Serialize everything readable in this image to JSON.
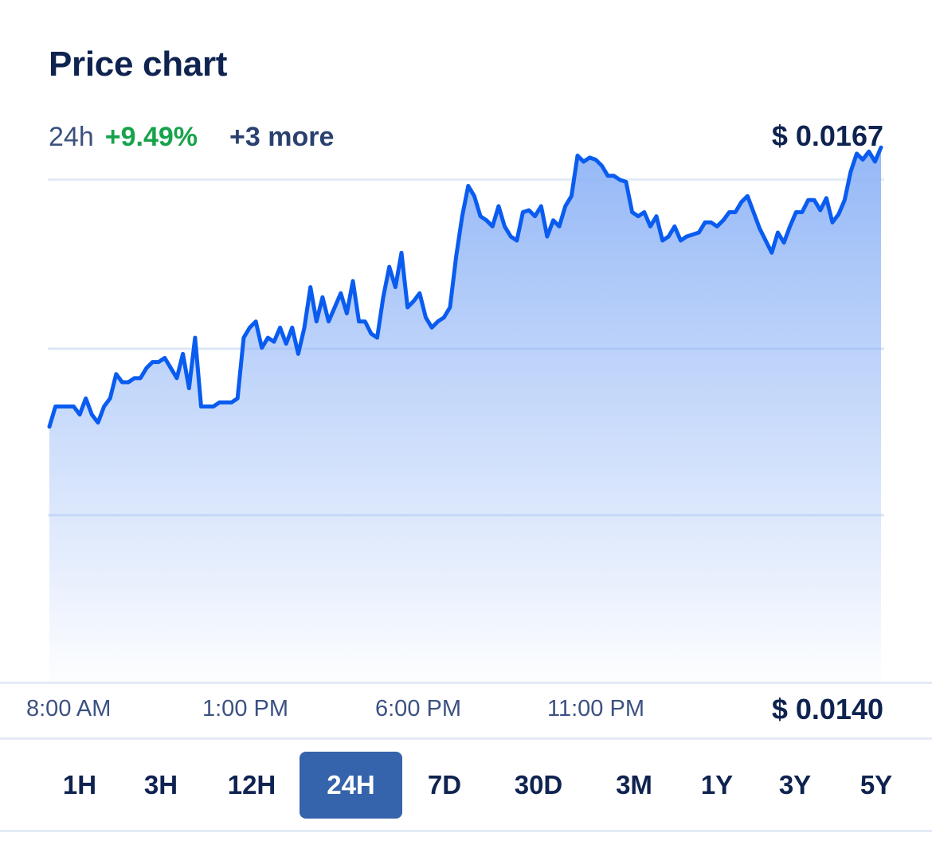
{
  "header": {
    "title": "Price chart",
    "period": "24h",
    "change": "+9.49%",
    "more": "+3 more",
    "price_high": "$ 0.0167",
    "price_low": "$ 0.0140"
  },
  "time_labels": [
    "8:00 AM",
    "1:00 PM",
    "6:00 PM",
    "11:00 PM"
  ],
  "ranges": [
    {
      "label": "1H",
      "active": false
    },
    {
      "label": "3H",
      "active": false
    },
    {
      "label": "12H",
      "active": false
    },
    {
      "label": "24H",
      "active": true
    },
    {
      "label": "7D",
      "active": false
    },
    {
      "label": "30D",
      "active": false
    },
    {
      "label": "3M",
      "active": false
    },
    {
      "label": "1Y",
      "active": false
    },
    {
      "label": "3Y",
      "active": false
    },
    {
      "label": "5Y",
      "active": false
    }
  ],
  "colors": {
    "line": "#0a5cf0",
    "fill_top": "#8fb4f6",
    "positive": "#16a34a",
    "active_range": "#3563ac"
  },
  "chart_data": {
    "type": "area",
    "xlabel": "",
    "ylabel": "",
    "x_ticks": [
      "8:00 AM",
      "1:00 PM",
      "6:00 PM",
      "11:00 PM"
    ],
    "y_labels": [
      "$ 0.0167",
      "$ 0.0140"
    ],
    "ylim": [
      0.014,
      0.0167
    ],
    "grid": true,
    "series": [
      {
        "values": [
          0.01526,
          0.01536,
          0.01536,
          0.01536,
          0.01536,
          0.01532,
          0.0154,
          0.01532,
          0.01528,
          0.01536,
          0.0154,
          0.01552,
          0.01548,
          0.01548,
          0.0155,
          0.0155,
          0.01555,
          0.01558,
          0.01558,
          0.0156,
          0.01555,
          0.0155,
          0.01562,
          0.01545,
          0.0157,
          0.01536,
          0.01536,
          0.01536,
          0.01538,
          0.01538,
          0.01538,
          0.0154,
          0.0157,
          0.01575,
          0.01578,
          0.01565,
          0.0157,
          0.01568,
          0.01575,
          0.01567,
          0.01575,
          0.01562,
          0.01575,
          0.01595,
          0.01578,
          0.0159,
          0.01578,
          0.01585,
          0.01592,
          0.01582,
          0.01598,
          0.01578,
          0.01578,
          0.01572,
          0.0157,
          0.0159,
          0.01605,
          0.01595,
          0.01612,
          0.01585,
          0.01588,
          0.01592,
          0.0158,
          0.01575,
          0.01578,
          0.0158,
          0.01585,
          0.0161,
          0.0163,
          0.01645,
          0.0164,
          0.0163,
          0.01628,
          0.01625,
          0.01635,
          0.01625,
          0.0162,
          0.01618,
          0.01632,
          0.01633,
          0.0163,
          0.01635,
          0.0162,
          0.01628,
          0.01625,
          0.01635,
          0.0164,
          0.0166,
          0.01657,
          0.01659,
          0.01658,
          0.01655,
          0.0165,
          0.0165,
          0.01648,
          0.01647,
          0.01632,
          0.0163,
          0.01632,
          0.01625,
          0.0163,
          0.01618,
          0.0162,
          0.01625,
          0.01618,
          0.0162,
          0.01621,
          0.01622,
          0.01627,
          0.01627,
          0.01625,
          0.01628,
          0.01632,
          0.01632,
          0.01637,
          0.0164,
          0.01632,
          0.01624,
          0.01618,
          0.01612,
          0.01622,
          0.01617,
          0.01625,
          0.01632,
          0.01632,
          0.01638,
          0.01638,
          0.01633,
          0.01639,
          0.01627,
          0.01631,
          0.01638,
          0.01652,
          0.01661,
          0.01658,
          0.01662,
          0.01657,
          0.01664
        ]
      }
    ]
  }
}
